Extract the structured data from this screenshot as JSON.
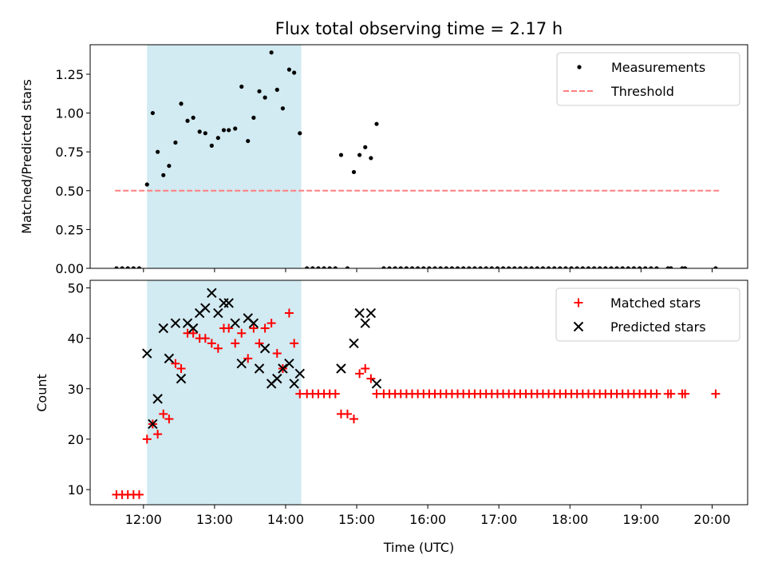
{
  "chart_data": [
    {
      "type": "scatter",
      "title": "Flux total observing time = 2.17 h",
      "xlabel": "",
      "ylabel": "Matched/Predicted stars",
      "ylim": [
        0,
        1.44
      ],
      "yticks": [
        0.0,
        0.25,
        0.5,
        0.75,
        1.0,
        1.25
      ],
      "ytick_labels": [
        "0.00",
        "0.25",
        "0.50",
        "0.75",
        "1.00",
        "1.25"
      ],
      "xlim_hours": [
        11.25,
        20.5
      ],
      "xticks_hours": [
        12,
        13,
        14,
        15,
        16,
        17,
        18,
        19,
        20
      ],
      "xtick_labels": [],
      "shaded_span_hours": [
        12.05,
        14.22
      ],
      "shaded_color": "#add8e6",
      "legend": {
        "location": "upper right",
        "entries": [
          "Measurements",
          "Threshold"
        ]
      },
      "threshold": {
        "name": "Threshold",
        "value": 0.5,
        "x_range_hours": [
          11.6,
          20.1
        ],
        "color": "#ff7f7f"
      },
      "series": [
        {
          "name": "Measurements",
          "color": "#000000",
          "x_hours": [
            11.62,
            11.7,
            11.78,
            11.86,
            11.94,
            12.05,
            12.13,
            12.2,
            12.28,
            12.36,
            12.45,
            12.53,
            12.62,
            12.7,
            12.79,
            12.87,
            12.96,
            13.05,
            13.13,
            13.2,
            13.29,
            13.38,
            13.47,
            13.55,
            13.63,
            13.71,
            13.8,
            13.88,
            13.96,
            14.05,
            14.12,
            14.2,
            14.3,
            14.38,
            14.46,
            14.54,
            14.62,
            14.7,
            14.78,
            14.87,
            14.96,
            15.04,
            15.12,
            15.2,
            15.28,
            15.38,
            15.46,
            15.54,
            15.62,
            15.7,
            15.78,
            15.86,
            15.94,
            16.02,
            16.1,
            16.18,
            16.26,
            16.34,
            16.42,
            16.5,
            16.58,
            16.66,
            16.74,
            16.82,
            16.9,
            16.98,
            17.06,
            17.14,
            17.22,
            17.3,
            17.38,
            17.46,
            17.54,
            17.62,
            17.7,
            17.78,
            17.86,
            17.94,
            18.02,
            18.1,
            18.18,
            18.26,
            18.34,
            18.42,
            18.5,
            18.58,
            18.66,
            18.74,
            18.82,
            18.9,
            18.98,
            19.06,
            19.14,
            19.22,
            19.38,
            19.42,
            19.58,
            19.62,
            20.05
          ],
          "y": [
            0,
            0,
            0,
            0,
            0,
            0.54,
            1.0,
            0.75,
            0.6,
            0.66,
            0.81,
            1.06,
            0.95,
            0.97,
            0.88,
            0.87,
            0.79,
            0.84,
            0.89,
            0.89,
            0.9,
            1.17,
            0.82,
            0.97,
            1.14,
            1.1,
            1.39,
            1.15,
            1.03,
            1.28,
            1.26,
            0.87,
            0,
            0,
            0,
            0,
            0,
            0,
            0.73,
            0,
            0.62,
            0.73,
            0.78,
            0.71,
            0.93,
            0,
            0,
            0,
            0,
            0,
            0,
            0,
            0,
            0,
            0,
            0,
            0,
            0,
            0,
            0,
            0,
            0,
            0,
            0,
            0,
            0,
            0,
            0,
            0,
            0,
            0,
            0,
            0,
            0,
            0,
            0,
            0,
            0,
            0,
            0,
            0,
            0,
            0,
            0,
            0,
            0,
            0,
            0,
            0,
            0,
            0,
            0,
            0,
            0,
            0,
            0,
            0,
            0,
            0
          ]
        }
      ]
    },
    {
      "type": "scatter",
      "title": "",
      "xlabel": "Time (UTC)",
      "ylabel": "Count",
      "ylim": [
        7,
        51.5
      ],
      "yticks": [
        10,
        20,
        30,
        40,
        50
      ],
      "ytick_labels": [
        "10",
        "20",
        "30",
        "40",
        "50"
      ],
      "xlim_hours": [
        11.25,
        20.5
      ],
      "xticks_hours": [
        12,
        13,
        14,
        15,
        16,
        17,
        18,
        19,
        20
      ],
      "xtick_labels": [
        "12:00",
        "13:00",
        "14:00",
        "15:00",
        "16:00",
        "17:00",
        "18:00",
        "19:00",
        "20:00"
      ],
      "shaded_span_hours": [
        12.05,
        14.22
      ],
      "shaded_color": "#add8e6",
      "legend": {
        "location": "upper right",
        "entries": [
          "Matched stars",
          "Predicted stars"
        ]
      },
      "series": [
        {
          "name": "Matched stars",
          "marker": "plus",
          "color": "#ff0000",
          "x_hours": [
            11.62,
            11.7,
            11.78,
            11.86,
            11.94,
            12.05,
            12.13,
            12.2,
            12.28,
            12.36,
            12.45,
            12.53,
            12.62,
            12.7,
            12.79,
            12.87,
            12.96,
            13.05,
            13.13,
            13.2,
            13.29,
            13.38,
            13.47,
            13.55,
            13.63,
            13.71,
            13.8,
            13.88,
            13.96,
            14.05,
            14.12,
            14.2,
            14.3,
            14.38,
            14.46,
            14.54,
            14.62,
            14.7,
            14.78,
            14.87,
            14.96,
            15.04,
            15.12,
            15.2,
            15.28,
            15.38,
            15.46,
            15.54,
            15.62,
            15.7,
            15.78,
            15.86,
            15.94,
            16.02,
            16.1,
            16.18,
            16.26,
            16.34,
            16.42,
            16.5,
            16.58,
            16.66,
            16.74,
            16.82,
            16.9,
            16.98,
            17.06,
            17.14,
            17.22,
            17.3,
            17.38,
            17.46,
            17.54,
            17.62,
            17.7,
            17.78,
            17.86,
            17.94,
            18.02,
            18.1,
            18.18,
            18.26,
            18.34,
            18.42,
            18.5,
            18.58,
            18.66,
            18.74,
            18.82,
            18.9,
            18.98,
            19.06,
            19.14,
            19.22,
            19.38,
            19.42,
            19.58,
            19.62,
            20.05
          ],
          "y": [
            9,
            9,
            9,
            9,
            9,
            20,
            23,
            21,
            25,
            24,
            35,
            34,
            41,
            41,
            40,
            40,
            39,
            38,
            42,
            42,
            39,
            41,
            36,
            42,
            39,
            42,
            43,
            37,
            34,
            45,
            39,
            29,
            29,
            29,
            29,
            29,
            29,
            29,
            25,
            25,
            24,
            33,
            34,
            32,
            29,
            29,
            29,
            29,
            29,
            29,
            29,
            29,
            29,
            29,
            29,
            29,
            29,
            29,
            29,
            29,
            29,
            29,
            29,
            29,
            29,
            29,
            29,
            29,
            29,
            29,
            29,
            29,
            29,
            29,
            29,
            29,
            29,
            29,
            29,
            29,
            29,
            29,
            29,
            29,
            29,
            29,
            29,
            29,
            29,
            29,
            29,
            29,
            29,
            29,
            29,
            29,
            29,
            29,
            29
          ]
        },
        {
          "name": "Predicted stars",
          "marker": "x",
          "color": "#000000",
          "x_hours": [
            12.05,
            12.13,
            12.2,
            12.28,
            12.36,
            12.45,
            12.53,
            12.62,
            12.7,
            12.79,
            12.87,
            12.96,
            13.05,
            13.13,
            13.2,
            13.29,
            13.38,
            13.47,
            13.55,
            13.63,
            13.71,
            13.8,
            13.88,
            13.96,
            14.05,
            14.12,
            14.2,
            14.78,
            14.96,
            15.04,
            15.12,
            15.2,
            15.28
          ],
          "y": [
            37,
            23,
            28,
            42,
            36,
            43,
            32,
            43,
            42,
            45,
            46,
            49,
            45,
            47,
            47,
            43,
            35,
            44,
            43,
            34,
            38,
            31,
            32,
            34,
            35,
            31,
            33,
            34,
            39,
            45,
            43,
            45,
            31
          ]
        }
      ]
    }
  ]
}
